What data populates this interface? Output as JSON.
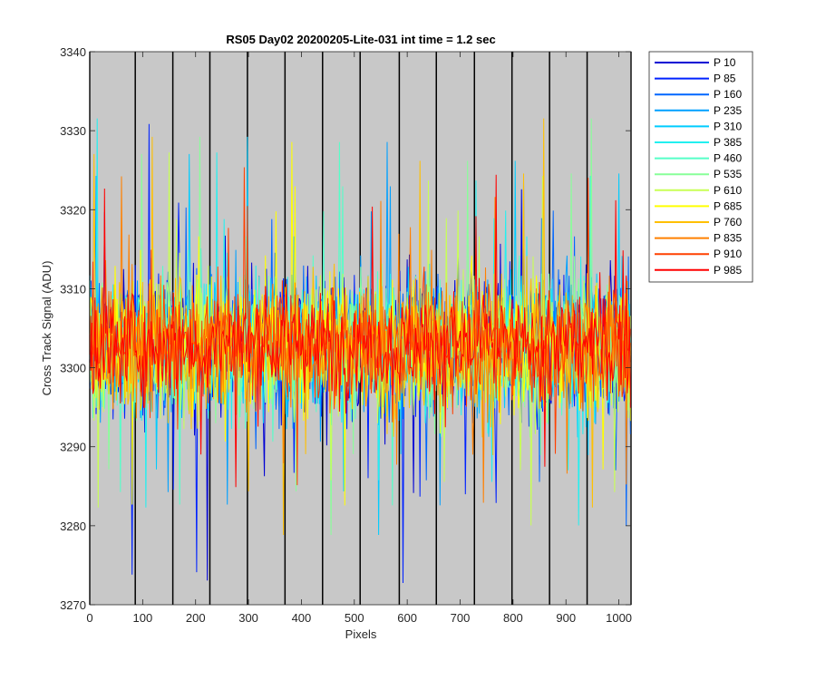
{
  "chart_data": {
    "type": "line",
    "title": "RS05 Day02 20200205-Lite-031 int time = 1.2 sec",
    "xlabel": "Pixels",
    "ylabel": "Cross Track Signal (ADU)",
    "xlim": [
      0,
      1023
    ],
    "ylim": [
      3270,
      3340
    ],
    "xticks": [
      0,
      100,
      200,
      300,
      400,
      500,
      600,
      700,
      800,
      900,
      1000
    ],
    "yticks": [
      3270,
      3280,
      3290,
      3300,
      3310,
      3320,
      3330,
      3340
    ],
    "background": "#c8c8c8",
    "grid": false,
    "legend_position": "outside-top-right",
    "separator_lines_x": [
      0,
      86,
      157,
      227,
      298,
      369,
      440,
      511,
      585,
      655,
      727,
      798,
      869,
      940,
      1023
    ],
    "series": [
      {
        "name": "P 10",
        "color": "#0000d4",
        "mean": 3303,
        "spread": 8
      },
      {
        "name": "P 85",
        "color": "#0022ff",
        "mean": 3303,
        "spread": 8
      },
      {
        "name": "P 160",
        "color": "#0066ff",
        "mean": 3303,
        "spread": 8
      },
      {
        "name": "P 235",
        "color": "#00a0ff",
        "mean": 3303,
        "spread": 8
      },
      {
        "name": "P 310",
        "color": "#00ccff",
        "mean": 3303,
        "spread": 8
      },
      {
        "name": "P 385",
        "color": "#22f0f0",
        "mean": 3303,
        "spread": 8
      },
      {
        "name": "P 460",
        "color": "#55ffc8",
        "mean": 3303,
        "spread": 8
      },
      {
        "name": "P 535",
        "color": "#88ff99",
        "mean": 3303,
        "spread": 8
      },
      {
        "name": "P 610",
        "color": "#c8ff55",
        "mean": 3303,
        "spread": 8
      },
      {
        "name": "P 685",
        "color": "#ffff00",
        "mean": 3303,
        "spread": 8
      },
      {
        "name": "P 760",
        "color": "#ffc000",
        "mean": 3303,
        "spread": 8
      },
      {
        "name": "P 835",
        "color": "#ff8000",
        "mean": 3303,
        "spread": 7
      },
      {
        "name": "P 910",
        "color": "#ff4000",
        "mean": 3303,
        "spread": 7
      },
      {
        "name": "P 985",
        "color": "#ff0000",
        "mean": 3303,
        "spread": 6
      }
    ]
  }
}
